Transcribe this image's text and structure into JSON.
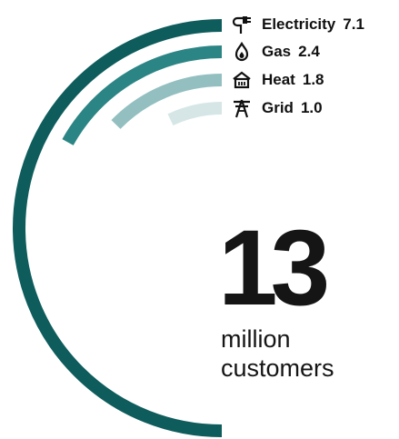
{
  "chart_data": {
    "type": "radial-bar",
    "unit": "",
    "categories": [
      "Electricity",
      "Gas",
      "Heat",
      "Grid"
    ],
    "values": [
      7.1,
      2.4,
      1.8,
      1.0
    ],
    "colors": [
      "#0e5c5c",
      "#2c8585",
      "#93bfc0",
      "#d6e6e6"
    ],
    "icons": [
      "plug-icon",
      "flame-icon",
      "house-heat-icon",
      "pylon-icon"
    ]
  },
  "headline": {
    "value": "13",
    "line1": "million",
    "line2": "customers"
  }
}
